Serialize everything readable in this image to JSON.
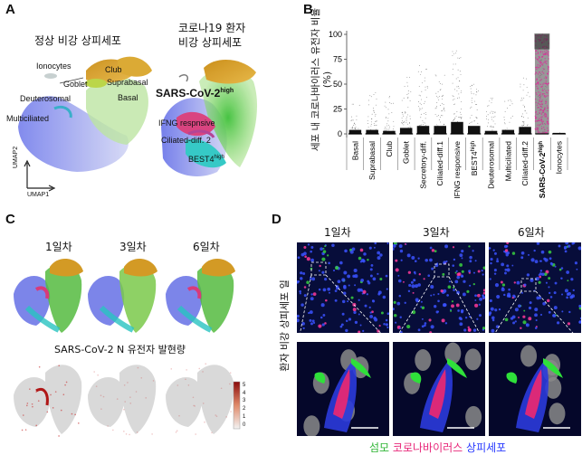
{
  "panels": {
    "A": "A",
    "B": "B",
    "C": "C",
    "D": "D"
  },
  "panelA": {
    "title_left": "정상 비강 상피세포",
    "title_right_1": "코로나19 환자",
    "title_right_2": "비강 상피세포",
    "labels_left": [
      "Ionocytes",
      "Club",
      "Goblet",
      "Suprabasal",
      "Deuterosomal",
      "Basal",
      "Multiciliated"
    ],
    "labels_right": [
      "SARS-CoV-2",
      "high",
      "IFNG respnsive",
      "Ciliated-diff. 2",
      "BEST4",
      "high"
    ],
    "umap1": "UMAP1",
    "umap2": "UMAP2"
  },
  "chart_data": {
    "type": "scatter",
    "ylabel": "세포 내 코로나바이러스 유전자 비율(%)",
    "ylim": [
      0,
      100
    ],
    "yticks": [
      0,
      25,
      50,
      75,
      100
    ],
    "categories": [
      "Basal",
      "Suprabasal",
      "Club",
      "Goblet",
      "Secretory-diff.",
      "Ciliated-diff.1",
      "IFNG responsive",
      "BEST4",
      "Deuterosomal",
      "Multiciliated",
      "Ciliated-diff.2",
      "SARS-CoV-2",
      "Ionocytes"
    ],
    "superscripts": [
      "",
      "",
      "",
      "",
      "",
      "",
      "",
      "high",
      "",
      "",
      "",
      "high",
      ""
    ],
    "max_values": [
      33,
      49,
      40,
      62,
      70,
      62,
      85,
      52,
      37,
      35,
      58,
      100,
      3
    ],
    "dense_top": [
      4,
      4,
      3,
      6,
      8,
      8,
      12,
      8,
      3,
      4,
      7,
      100,
      1
    ]
  },
  "panelC": {
    "days": [
      "1일차",
      "3일차",
      "6일차"
    ],
    "subtitle": "SARS-CoV-2 N 유전자 발현량",
    "colorbar_ticks": [
      "0",
      "1",
      "2",
      "3",
      "4",
      "5"
    ]
  },
  "panelD": {
    "days": [
      "1일차",
      "3일차",
      "6일차"
    ],
    "side_label": "환자 비강 상피세포 일",
    "caption": {
      "cilia": "섬모",
      "virus": "코로나바이러스",
      "epi": "상피세포"
    },
    "colors": {
      "cilia": "#2fd43a",
      "virus": "#ff2d8a",
      "epi": "#2a3bff"
    }
  }
}
